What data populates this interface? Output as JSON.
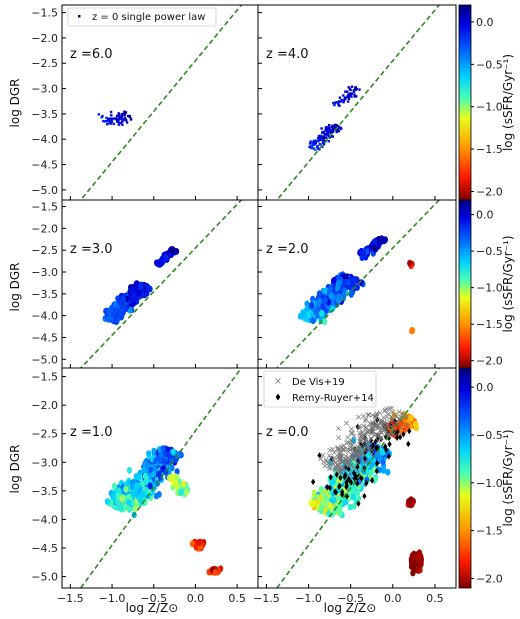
{
  "chart_data": {
    "type": "scatter",
    "xlabel": "log Z/Z⊙",
    "ylabel": "log DGR",
    "xlim": [
      -1.6,
      0.75
    ],
    "ylim": [
      -5.2,
      -1.35
    ],
    "xticks": [
      "−1.5",
      "−1.0",
      "−0.5",
      "0.0",
      "0.5"
    ],
    "xtick_values": [
      -1.5,
      -1.0,
      -0.5,
      0.0,
      0.5
    ],
    "yticks": [
      "−1.5",
      "−2.0",
      "−2.5",
      "−3.0",
      "−3.5",
      "−4.0",
      "−4.5",
      "−5.0"
    ],
    "ytick_values": [
      -1.5,
      -2.0,
      -2.5,
      -3.0,
      -3.5,
      -4.0,
      -4.5,
      -5.0
    ],
    "reference_line": {
      "name": "z = 0 single power law",
      "slope": 2.0,
      "intercept": -2.45,
      "color": "#2e8b22"
    },
    "colorbar": {
      "label": "log (sSFR/Gyr⁻¹)",
      "range": [
        -2.1,
        0.2
      ],
      "ticks": [
        "0.0",
        "−0.5",
        "−1.0",
        "−1.5",
        "−2.0"
      ],
      "tick_values": [
        0.0,
        -0.5,
        -1.0,
        -1.5,
        -2.0
      ]
    },
    "panels": [
      {
        "label": "z =6.0",
        "clusters": [
          {
            "x": -0.95,
            "y": -3.6,
            "slope": 0.3,
            "length": 0.35,
            "width": 0.14,
            "n": 70,
            "c_main": 0.0,
            "c_spread": 0.2,
            "mode": "dot"
          }
        ]
      },
      {
        "label": "z =4.0",
        "clusters": [
          {
            "x": -0.82,
            "y": -3.95,
            "slope": 1.6,
            "length": 0.55,
            "width": 0.09,
            "n": 120,
            "c_main": -0.05,
            "c_spread": 0.2,
            "mode": "dot"
          },
          {
            "x": -0.55,
            "y": -3.15,
            "slope": 1.6,
            "length": 0.45,
            "width": 0.06,
            "n": 50,
            "c_main": 0.0,
            "c_spread": 0.15,
            "mode": "dot"
          }
        ]
      },
      {
        "label": "z =3.0",
        "clusters": [
          {
            "x": -0.82,
            "y": -3.7,
            "slope": 1.9,
            "length": 0.9,
            "width": 0.1,
            "n": 260,
            "c_main": -0.15,
            "c_spread": 0.3,
            "mode": "hex"
          },
          {
            "x": -0.35,
            "y": -2.65,
            "slope": 1.9,
            "length": 0.4,
            "width": 0.05,
            "n": 40,
            "c_main": 0.0,
            "c_spread": 0.15,
            "mode": "hex"
          }
        ]
      },
      {
        "label": "z =2.0",
        "clusters": [
          {
            "x": -0.75,
            "y": -3.6,
            "slope": 1.8,
            "length": 1.1,
            "width": 0.15,
            "n": 360,
            "c_main": -0.35,
            "c_spread": 0.45,
            "mode": "hex"
          },
          {
            "x": -0.25,
            "y": -2.45,
            "slope": 1.6,
            "length": 0.5,
            "width": 0.07,
            "n": 60,
            "c_main": -0.05,
            "c_spread": 0.2,
            "mode": "hex"
          },
          {
            "x": 0.22,
            "y": -2.85,
            "slope": -6,
            "length": 0.12,
            "width": 0.03,
            "n": 6,
            "c_main": -1.85,
            "c_spread": 0.2,
            "mode": "hex"
          },
          {
            "x": 0.2,
            "y": -4.35,
            "slope": 0,
            "length": 0.08,
            "width": 0.03,
            "n": 3,
            "c_main": -1.6,
            "c_spread": 0.2,
            "mode": "hex"
          }
        ]
      },
      {
        "label": "z =1.0",
        "clusters": [
          {
            "x": -0.6,
            "y": -3.3,
            "slope": 1.5,
            "length": 1.2,
            "width": 0.18,
            "n": 420,
            "c_main": -0.55,
            "c_spread": 0.5,
            "mode": "hex"
          },
          {
            "x": -0.2,
            "y": -3.4,
            "slope": -1.8,
            "length": 0.35,
            "width": 0.06,
            "n": 40,
            "c_main": -1.0,
            "c_spread": 0.3,
            "mode": "hex"
          },
          {
            "x": 0.05,
            "y": -4.45,
            "slope": -12,
            "length": 0.12,
            "width": 0.05,
            "n": 50,
            "c_main": -1.75,
            "c_spread": 0.3,
            "mode": "hex"
          },
          {
            "x": 0.23,
            "y": -4.9,
            "slope": -8,
            "length": 0.06,
            "width": 0.06,
            "n": 30,
            "c_main": -1.8,
            "c_spread": 0.25,
            "mode": "hex"
          }
        ]
      },
      {
        "label": "z =0.0",
        "clusters": [
          {
            "x": -0.5,
            "y": -3.3,
            "slope": 1.6,
            "length": 1.3,
            "width": 0.2,
            "n": 480,
            "c_main": -0.75,
            "c_spread": 0.55,
            "mode": "hex"
          },
          {
            "x": 0.1,
            "y": -2.35,
            "slope": 0.8,
            "length": 0.35,
            "width": 0.1,
            "n": 90,
            "c_main": -1.6,
            "c_spread": 0.35,
            "mode": "hex"
          },
          {
            "x": 0.28,
            "y": -4.75,
            "slope": 0,
            "length": 0.12,
            "width": 0.12,
            "n": 140,
            "c_main": -2.05,
            "c_spread": 0.08,
            "mode": "hex"
          },
          {
            "x": 0.22,
            "y": -3.7,
            "slope": -12,
            "length": 0.1,
            "width": 0.04,
            "n": 20,
            "c_main": -2.0,
            "c_spread": 0.1,
            "mode": "hex"
          }
        ],
        "observations": [
          {
            "name": "Remy-Ruyer+14",
            "marker": "diamond",
            "color": "#000000",
            "x": -0.3,
            "y": -2.9,
            "slope": 1.4,
            "length": 1.5,
            "width": 0.35,
            "n": 85
          },
          {
            "name": "De Vis+19",
            "marker": "cross",
            "color": "#777777",
            "x": -0.35,
            "y": -2.6,
            "slope": 1.3,
            "length": 1.3,
            "width": 0.22,
            "n": 260
          }
        ]
      }
    ]
  }
}
